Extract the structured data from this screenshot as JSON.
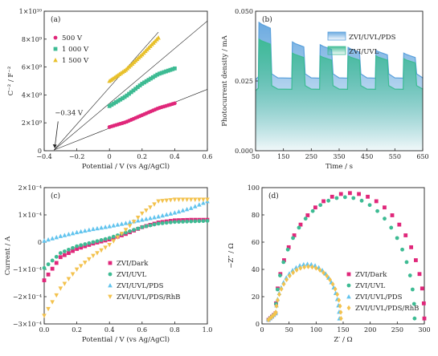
{
  "chart_data": [
    {
      "id": "a",
      "panel_label": "(a)",
      "type": "scatter",
      "xlabel": "Potential / V (vs Ag/AgCl)",
      "ylabel": "C⁻² / F⁻²",
      "xlim": [
        -0.4,
        0.6
      ],
      "ylim": [
        0,
        10000000000.0
      ],
      "x_ticks": [
        -0.4,
        -0.2,
        0,
        0.2,
        0.4,
        0.6
      ],
      "x_tick_labels": [
        "−0.4",
        "−0.2",
        "0",
        "0.2",
        "0.4",
        "0.6"
      ],
      "y_ticks": [
        0,
        2000000000.0,
        4000000000.0,
        6000000000.0,
        8000000000.0,
        10000000000.0
      ],
      "y_tick_labels": [
        "0",
        "2×10⁹",
        "4×10⁹",
        "6×10⁹",
        "8×10⁹",
        "1×10¹⁰"
      ],
      "annotation": "−0.34 V",
      "annotation_point": [
        -0.34,
        0
      ],
      "series": [
        {
          "name": "500 V",
          "color": "#e0277a",
          "marker": "circle",
          "x_range": [
            0,
            0.4
          ],
          "points": [
            [
              0,
              1700000000.0
            ],
            [
              0.1,
              2050000000.0
            ],
            [
              0.2,
              2550000000.0
            ],
            [
              0.3,
              3050000000.0
            ],
            [
              0.4,
              3400000000.0
            ]
          ],
          "fit_line": [
            [
              -0.34,
              50000000.0
            ],
            [
              0.6,
              4400000000.0
            ]
          ]
        },
        {
          "name": "1 000 V",
          "color": "#3dbb93",
          "marker": "square",
          "x_range": [
            0,
            0.4
          ],
          "points": [
            [
              0,
              3200000000.0
            ],
            [
              0.1,
              3900000000.0
            ],
            [
              0.2,
              4800000000.0
            ],
            [
              0.3,
              5500000000.0
            ],
            [
              0.4,
              5900000000.0
            ]
          ],
          "fit_line": [
            [
              -0.34,
              50000000.0
            ],
            [
              0.6,
              9300000000.0
            ]
          ]
        },
        {
          "name": "1 500 V",
          "color": "#e8c02a",
          "marker": "triangle",
          "x_range": [
            0,
            0.3
          ],
          "points": [
            [
              0,
              5000000000.0
            ],
            [
              0.1,
              5800000000.0
            ],
            [
              0.2,
              6900000000.0
            ],
            [
              0.3,
              8100000000.0
            ]
          ],
          "fit_line": [
            [
              -0.34,
              50000000.0
            ],
            [
              0.3,
              8500000000.0
            ]
          ]
        }
      ],
      "legend_position": "upper-left"
    },
    {
      "id": "b",
      "panel_label": "(b)",
      "type": "area",
      "xlabel": "Time / s",
      "ylabel": "Photocurrent density / mA",
      "xlim": [
        50,
        650
      ],
      "ylim": [
        0,
        0.05
      ],
      "x_ticks": [
        50,
        150,
        250,
        350,
        450,
        550,
        650
      ],
      "x_tick_labels": [
        "50",
        "150",
        "250",
        "350",
        "450",
        "550",
        "650"
      ],
      "y_ticks": [
        0,
        0.025,
        0.05
      ],
      "y_tick_labels": [
        "0.000",
        "0.025",
        "0.050"
      ],
      "on_off_cycles": [
        [
          60,
          105
        ],
        [
          180,
          225
        ],
        [
          280,
          325
        ],
        [
          380,
          425
        ],
        [
          480,
          525
        ],
        [
          580,
          625
        ]
      ],
      "series": [
        {
          "name": "ZVI/UVL/PDS",
          "color": "#5aa0dc",
          "on_values": [
            0.046,
            0.039,
            0.038,
            0.037,
            0.036,
            0.035
          ],
          "off_value": 0.026
        },
        {
          "name": "ZVI/UVL",
          "color": "#3dbb93",
          "on_values": [
            0.04,
            0.035,
            0.034,
            0.034,
            0.034,
            0.033
          ],
          "off_value": 0.022
        }
      ],
      "legend_position": "upper-right"
    },
    {
      "id": "c",
      "panel_label": "(c)",
      "type": "scatter",
      "xlabel": "Potential / V (vs Ag/AgCl)",
      "ylabel": "Current / A",
      "xlim": [
        0,
        1.0
      ],
      "ylim": [
        -0.0003,
        0.0002
      ],
      "x_ticks": [
        0,
        0.2,
        0.4,
        0.6,
        0.8,
        1.0
      ],
      "x_tick_labels": [
        "0.0",
        "0.2",
        "0.4",
        "0.6",
        "0.8",
        "1.0"
      ],
      "y_ticks": [
        -0.0003,
        -0.0002,
        -0.0001,
        0,
        0.0001,
        0.0002
      ],
      "y_tick_labels": [
        "−3×10⁻⁴",
        "−2×10⁻⁴",
        "−1×10⁻⁴",
        "0",
        "1×10⁻⁴",
        "2×10⁻⁴"
      ],
      "series": [
        {
          "name": "ZVI/Dark",
          "color": "#e0277a",
          "marker": "square",
          "points": [
            [
              0,
              -0.00014
            ],
            [
              0.1,
              -5.5e-05
            ],
            [
              0.2,
              -2.5e-05
            ],
            [
              0.3,
              -5e-06
            ],
            [
              0.4,
              1e-05
            ],
            [
              0.5,
              3e-05
            ],
            [
              0.6,
              5.5e-05
            ],
            [
              0.7,
              7.2e-05
            ],
            [
              0.8,
              8e-05
            ],
            [
              0.9,
              8.2e-05
            ],
            [
              1.0,
              8.2e-05
            ]
          ]
        },
        {
          "name": "ZVI/UVL",
          "color": "#3dbb93",
          "marker": "circle",
          "points": [
            [
              0,
              -9.5e-05
            ],
            [
              0.1,
              -4e-05
            ],
            [
              0.2,
              -1.5e-05
            ],
            [
              0.3,
              0
            ],
            [
              0.4,
              1.5e-05
            ],
            [
              0.5,
              3.5e-05
            ],
            [
              0.6,
              5.5e-05
            ],
            [
              0.7,
              6.8e-05
            ],
            [
              0.8,
              7.4e-05
            ],
            [
              0.9,
              7.6e-05
            ],
            [
              1.0,
              7.8e-05
            ]
          ]
        },
        {
          "name": "ZVI/UVL/PDS",
          "color": "#62c4ee",
          "marker": "triangle",
          "points": [
            [
              0,
              5e-06
            ],
            [
              0.1,
              2.2e-05
            ],
            [
              0.2,
              3.6e-05
            ],
            [
              0.3,
              4.8e-05
            ],
            [
              0.4,
              5.8e-05
            ],
            [
              0.5,
              7e-05
            ],
            [
              0.6,
              8.2e-05
            ],
            [
              0.7,
              9.4e-05
            ],
            [
              0.8,
              0.000108
            ],
            [
              0.9,
              0.000125
            ],
            [
              1.0,
              0.00015
            ]
          ]
        },
        {
          "name": "ZVI/UVL/PDS/RhB",
          "color": "#f3c24e",
          "marker": "triangle-down",
          "points": [
            [
              0,
              -0.00027
            ],
            [
              0.1,
              -0.00017
            ],
            [
              0.2,
              -0.0001
            ],
            [
              0.3,
              -5e-05
            ],
            [
              0.4,
              -1e-05
            ],
            [
              0.5,
              4.5e-05
            ],
            [
              0.6,
              0.000105
            ],
            [
              0.7,
              0.00015
            ],
            [
              0.8,
              0.000156
            ],
            [
              0.9,
              0.000156
            ],
            [
              1.0,
              0.000156
            ]
          ]
        }
      ],
      "legend_position": "lower-right"
    },
    {
      "id": "d",
      "panel_label": "(d)",
      "type": "scatter",
      "xlabel": "Z′ / Ω",
      "ylabel": "−Z″ / Ω",
      "xlim": [
        0,
        300
      ],
      "ylim": [
        0,
        100
      ],
      "x_ticks": [
        0,
        50,
        100,
        150,
        200,
        250,
        300
      ],
      "x_tick_labels": [
        "0",
        "50",
        "100",
        "150",
        "200",
        "250",
        "300"
      ],
      "y_ticks": [
        0,
        20,
        40,
        60,
        80,
        100
      ],
      "y_tick_labels": [
        "0",
        "20",
        "40",
        "60",
        "80",
        "100"
      ],
      "series": [
        {
          "name": "ZVI/Dark",
          "color": "#e0277a",
          "marker": "square",
          "arc_start": 25,
          "arc_end": 300,
          "arc_peak": 92,
          "tail_start": 12
        },
        {
          "name": "ZVI/UVL",
          "color": "#3dbb93",
          "marker": "circle",
          "arc_start": 25,
          "arc_end": 282,
          "arc_peak": 89,
          "tail_start": 12
        },
        {
          "name": "ZVI/UVL/PDS",
          "color": "#62c4ee",
          "marker": "triangle",
          "arc_start": 25,
          "arc_end": 143,
          "arc_peak": 40,
          "tail_start": 12
        },
        {
          "name": "ZVI/UVL/PDS/RhB",
          "color": "#f3c24e",
          "marker": "diamond",
          "arc_start": 25,
          "arc_end": 146,
          "arc_peak": 38,
          "tail_start": 12
        }
      ],
      "legend_position": "lower-right"
    }
  ]
}
